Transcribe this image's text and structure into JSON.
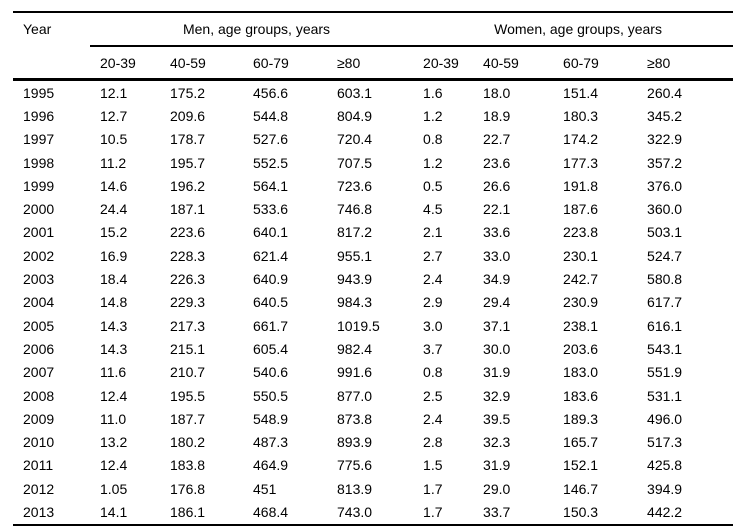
{
  "chart_data": {
    "type": "table",
    "year_header": "Year",
    "group_headers": {
      "men": "Men, age groups, years",
      "women": "Women, age groups, years"
    },
    "men_age_headers": [
      "20-39",
      "40-59",
      "60-79",
      "≥80"
    ],
    "women_age_headers": [
      "20-39",
      "40-59",
      "60-79",
      "≥80"
    ],
    "rows": [
      {
        "year": "1995",
        "men": [
          "12.1",
          "175.2",
          "456.6",
          "603.1"
        ],
        "women": [
          "1.6",
          "18.0",
          "151.4",
          "260.4"
        ]
      },
      {
        "year": "1996",
        "men": [
          "12.7",
          "209.6",
          "544.8",
          "804.9"
        ],
        "women": [
          "1.2",
          "18.9",
          "180.3",
          "345.2"
        ]
      },
      {
        "year": "1997",
        "men": [
          "10.5",
          "178.7",
          "527.6",
          "720.4"
        ],
        "women": [
          "0.8",
          "22.7",
          "174.2",
          "322.9"
        ]
      },
      {
        "year": "1998",
        "men": [
          "11.2",
          "195.7",
          "552.5",
          "707.5"
        ],
        "women": [
          "1.2",
          "23.6",
          "177.3",
          "357.2"
        ]
      },
      {
        "year": "1999",
        "men": [
          "14.6",
          "196.2",
          "564.1",
          "723.6"
        ],
        "women": [
          "0.5",
          "26.6",
          "191.8",
          "376.0"
        ]
      },
      {
        "year": "2000",
        "men": [
          "24.4",
          "187.1",
          "533.6",
          "746.8"
        ],
        "women": [
          "4.5",
          "22.1",
          "187.6",
          "360.0"
        ]
      },
      {
        "year": "2001",
        "men": [
          "15.2",
          "223.6",
          "640.1",
          "817.2"
        ],
        "women": [
          "2.1",
          "33.6",
          "223.8",
          "503.1"
        ]
      },
      {
        "year": "2002",
        "men": [
          "16.9",
          "228.3",
          "621.4",
          "955.1"
        ],
        "women": [
          "2.7",
          "33.0",
          "230.1",
          "524.7"
        ]
      },
      {
        "year": "2003",
        "men": [
          "18.4",
          "226.3",
          "640.9",
          "943.9"
        ],
        "women": [
          "2.4",
          "34.9",
          "242.7",
          "580.8"
        ]
      },
      {
        "year": "2004",
        "men": [
          "14.8",
          "229.3",
          "640.5",
          "984.3"
        ],
        "women": [
          "2.9",
          "29.4",
          "230.9",
          "617.7"
        ]
      },
      {
        "year": "2005",
        "men": [
          "14.3",
          "217.3",
          "661.7",
          "1019.5"
        ],
        "women": [
          "3.0",
          "37.1",
          "238.1",
          "616.1"
        ]
      },
      {
        "year": "2006",
        "men": [
          "14.3",
          "215.1",
          "605.4",
          "982.4"
        ],
        "women": [
          "3.7",
          "30.0",
          "203.6",
          "543.1"
        ]
      },
      {
        "year": "2007",
        "men": [
          "11.6",
          "210.7",
          "540.6",
          "991.6"
        ],
        "women": [
          "0.8",
          "31.9",
          "183.0",
          "551.9"
        ]
      },
      {
        "year": "2008",
        "men": [
          "12.4",
          "195.5",
          "550.5",
          "877.0"
        ],
        "women": [
          "2.5",
          "32.9",
          "183.6",
          "531.1"
        ]
      },
      {
        "year": "2009",
        "men": [
          "11.0",
          "187.7",
          "548.9",
          "873.8"
        ],
        "women": [
          "2.4",
          "39.5",
          "189.3",
          "496.0"
        ]
      },
      {
        "year": "2010",
        "men": [
          "13.2",
          "180.2",
          "487.3",
          "893.9"
        ],
        "women": [
          "2.8",
          "32.3",
          "165.7",
          "517.3"
        ]
      },
      {
        "year": "2011",
        "men": [
          "12.4",
          "183.8",
          "464.9",
          "775.6"
        ],
        "women": [
          "1.5",
          "31.9",
          "152.1",
          "425.8"
        ]
      },
      {
        "year": "2012",
        "men": [
          "1.05",
          "176.8",
          "451",
          "813.9"
        ],
        "women": [
          "1.7",
          "29.0",
          "146.7",
          "394.9"
        ]
      },
      {
        "year": "2013",
        "men": [
          "14.1",
          "186.1",
          "468.4",
          "743.0"
        ],
        "women": [
          "1.7",
          "33.7",
          "150.3",
          "442.2"
        ]
      }
    ],
    "colors": {
      "text": "#000000",
      "background": "#ffffff",
      "rule": "#000000"
    }
  }
}
